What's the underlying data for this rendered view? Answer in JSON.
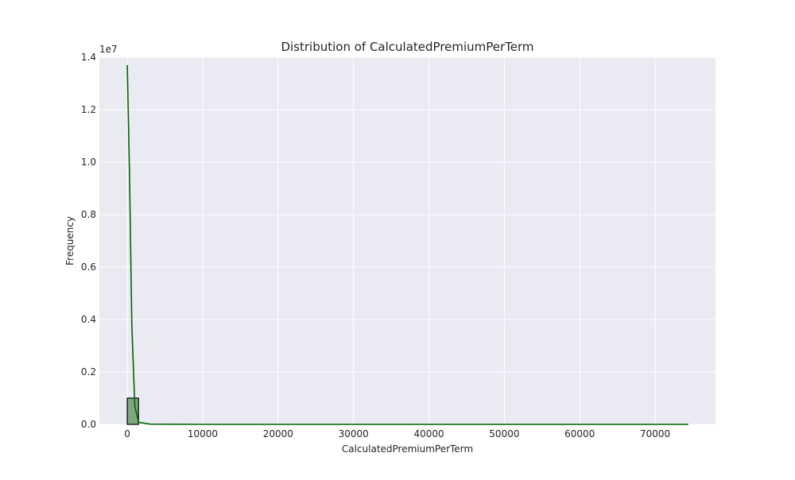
{
  "chart_data": {
    "type": "bar",
    "title": "Distribution of CalculatedPremiumPerTerm",
    "xlabel": "CalculatedPremiumPerTerm",
    "ylabel": "Frequency",
    "y_offset_label": "1e7",
    "xlim": [
      -3700,
      78000
    ],
    "ylim": [
      0,
      14000000
    ],
    "x_ticks": [
      0,
      10000,
      20000,
      30000,
      40000,
      50000,
      60000,
      70000
    ],
    "x_tick_labels": [
      "0",
      "10000",
      "20000",
      "30000",
      "40000",
      "50000",
      "60000",
      "70000"
    ],
    "y_ticks": [
      0,
      2000000,
      4000000,
      6000000,
      8000000,
      10000000,
      12000000,
      14000000
    ],
    "y_tick_labels": [
      "0.0",
      "0.2",
      "0.4",
      "0.6",
      "0.8",
      "1.0",
      "1.2",
      "1.4"
    ],
    "histogram": {
      "bin_edges": [
        0,
        1490,
        2980
      ],
      "counts": [
        1000000,
        0
      ],
      "note_bins_beyond": 0
    },
    "kde_curve": {
      "x": [
        0,
        300,
        600,
        1000,
        1500,
        3000,
        10000,
        30000,
        50000,
        74400
      ],
      "y": [
        13700000,
        9500000,
        3800000,
        700000,
        80000,
        10000,
        0,
        0,
        0,
        0
      ]
    },
    "grid": true,
    "colors": {
      "plot_background": "#eaeaf2",
      "grid": "#ffffff",
      "bar_fill": "#7fa77f",
      "bar_edge": "#000000",
      "kde_line": "#006400"
    }
  }
}
